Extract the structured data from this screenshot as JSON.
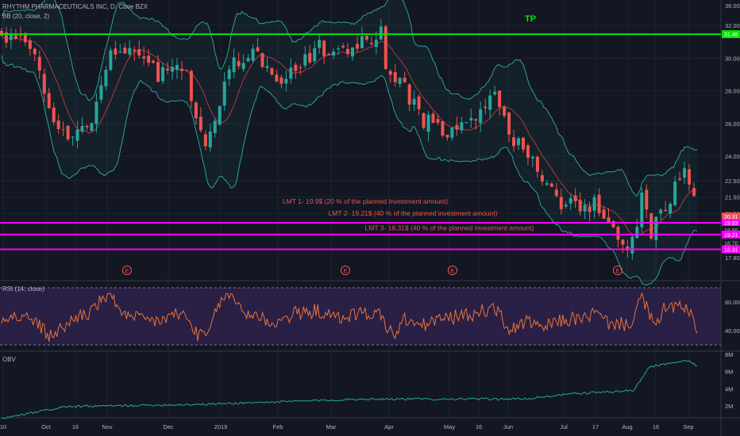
{
  "header": {
    "symbol_line": "RHYTHM PHARMACEUTICALS INC, D, Cboe BZX",
    "bb_label": "BB (20, close, 2)"
  },
  "price_axis": {
    "ticks": [
      "36.00",
      "32.00",
      "30.00",
      "28.00",
      "26.00",
      "24.00",
      "22.50",
      "21.50",
      "20.50",
      "17.80"
    ]
  },
  "price_tags": [
    {
      "text": "31.46",
      "color": "#00e600",
      "price": 31.46
    },
    {
      "text": "20.31",
      "color": "#ef5350",
      "price": 20.31
    },
    {
      "text": "19.93",
      "color": "#ff00ff",
      "price": 19.93
    },
    {
      "text": "19.50",
      "color": "#b2b5be",
      "price": 19.5
    },
    {
      "text": "19.21",
      "color": "#ff00ff",
      "price": 19.21
    },
    {
      "text": "18.70",
      "color": "#b2b5be",
      "price": 18.7
    },
    {
      "text": "18.31",
      "color": "#ff00ff",
      "price": 18.31
    }
  ],
  "levels": {
    "tp": {
      "label": "TP",
      "price": 31.46,
      "color": "#00e600"
    },
    "lmt": [
      {
        "label": "LMT 1- 19.9$ (20 % of the planned investment amount)",
        "price": 19.93,
        "color": "#ff00ff"
      },
      {
        "label": "LMT 2- 19.21$ (40 % of the planned investment amount)",
        "price": 19.21,
        "color": "#ff00ff"
      },
      {
        "label": "LMT 3- 18,31$ (40 % of the planned investment amount)",
        "price": 18.31,
        "color": "#ff00ff"
      }
    ]
  },
  "earnings_marker": "E",
  "rsi": {
    "label": "RSI (14, close)",
    "ticks": [
      "60.00",
      "40.00"
    ]
  },
  "obv": {
    "label": "OBV",
    "ticks": [
      "8M",
      "6M",
      "4M",
      "2M"
    ]
  },
  "time_axis": [
    "10",
    "Oct",
    "16",
    "Nov",
    "Dec",
    "2019",
    "Feb",
    "Mar",
    "Apr",
    "May",
    "16",
    "Jun",
    "Jul",
    "17",
    "Aug",
    "16",
    "Sep"
  ],
  "colors": {
    "up": "#26a69a",
    "down": "#ef5350",
    "bb": "#2aa198",
    "rsi_line": "#e8743b",
    "obv_line": "#26a69a",
    "rsi_band": "#2a1f45"
  },
  "chart_data": {
    "type": "candlestick",
    "series": [
      {
        "name": "RHYTHM PHARMACEUTICALS INC",
        "anchors_close": [
          [
            0,
            31.2
          ],
          [
            12,
            31.0
          ],
          [
            20,
            30.5
          ],
          [
            30,
            27.0
          ],
          [
            40,
            25.2
          ],
          [
            55,
            25.8
          ],
          [
            70,
            30.8
          ],
          [
            85,
            30.2
          ],
          [
            100,
            29.0
          ],
          [
            115,
            29.5
          ],
          [
            130,
            24.3
          ],
          [
            145,
            29.8
          ],
          [
            160,
            30.4
          ],
          [
            175,
            28.8
          ],
          [
            190,
            29.6
          ],
          [
            200,
            30.6
          ],
          [
            215,
            30.2
          ],
          [
            230,
            31.0
          ],
          [
            240,
            31.4
          ],
          [
            245,
            28.6
          ],
          [
            255,
            28.1
          ],
          [
            265,
            26.3
          ],
          [
            280,
            25.5
          ],
          [
            295,
            25.7
          ],
          [
            305,
            26.7
          ],
          [
            312,
            28.0
          ],
          [
            318,
            26.0
          ],
          [
            325,
            25.0
          ],
          [
            333,
            24.3
          ],
          [
            340,
            22.5
          ],
          [
            350,
            21.5
          ],
          [
            360,
            21.0
          ],
          [
            368,
            20.7
          ],
          [
            375,
            21.3
          ],
          [
            382,
            20.2
          ],
          [
            388,
            19.6
          ],
          [
            393,
            18.6
          ],
          [
            398,
            18.6
          ],
          [
            402,
            20.2
          ],
          [
            405,
            21.8
          ],
          [
            410,
            19.2
          ],
          [
            418,
            20.8
          ],
          [
            428,
            22.4
          ],
          [
            434,
            22.9
          ],
          [
            440,
            20.3
          ]
        ]
      }
    ]
  }
}
